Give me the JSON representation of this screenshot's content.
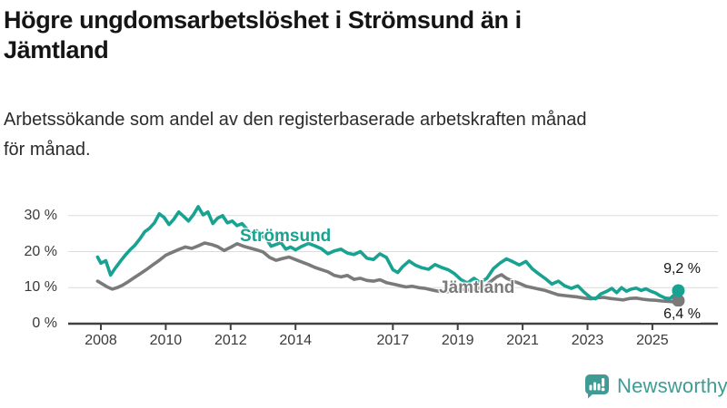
{
  "header": {
    "title_lines": [
      "Högre ungdomsarbetslöshet i Strömsund än i",
      "Jämtland"
    ],
    "subtitle_lines": [
      "Arbetssökande som andel av den registerbaserade arbetskraften månad",
      "för månad."
    ]
  },
  "chart_data": {
    "type": "line",
    "title": "Högre ungdomsarbetslöshet i Strömsund än i Jämtland",
    "subtitle": "Arbetssökande som andel av den registerbaserade arbetskraften månad för månad.",
    "unit": "%",
    "grid": true,
    "legend_position": "inline-labels",
    "x_axis": {
      "range": [
        2007.8,
        2026.1
      ],
      "ticks": [
        {
          "value": 2008,
          "label": "2008"
        },
        {
          "value": 2010,
          "label": "2010"
        },
        {
          "value": 2012,
          "label": "2012"
        },
        {
          "value": 2014,
          "label": "2014"
        },
        {
          "value": 2017,
          "label": "2017"
        },
        {
          "value": 2019,
          "label": "2019"
        },
        {
          "value": 2021,
          "label": "2021"
        },
        {
          "value": 2023,
          "label": "2023"
        },
        {
          "value": 2025,
          "label": "2025"
        }
      ]
    },
    "y_axis": {
      "range": [
        0,
        34
      ],
      "ticks": [
        {
          "value": 0,
          "label": "0 %"
        },
        {
          "value": 10,
          "label": "10 %"
        },
        {
          "value": 20,
          "label": "20 %"
        },
        {
          "value": 30,
          "label": "30 %"
        }
      ]
    },
    "series": [
      {
        "name": "Strömsund",
        "color": "#18a292",
        "end_label": "9,2 %",
        "end_value": 9.2,
        "points": [
          [
            2007.9,
            18.5
          ],
          [
            2008.0,
            16.8
          ],
          [
            2008.15,
            17.5
          ],
          [
            2008.3,
            13.5
          ],
          [
            2008.45,
            15.5
          ],
          [
            2008.6,
            17.3
          ],
          [
            2008.75,
            19.0
          ],
          [
            2008.9,
            20.5
          ],
          [
            2009.05,
            21.8
          ],
          [
            2009.2,
            23.5
          ],
          [
            2009.35,
            25.5
          ],
          [
            2009.5,
            26.5
          ],
          [
            2009.65,
            28.0
          ],
          [
            2009.8,
            30.5
          ],
          [
            2009.95,
            29.5
          ],
          [
            2010.1,
            27.5
          ],
          [
            2010.25,
            29.0
          ],
          [
            2010.4,
            31.0
          ],
          [
            2010.55,
            29.8
          ],
          [
            2010.7,
            28.5
          ],
          [
            2010.85,
            30.2
          ],
          [
            2011.0,
            32.5
          ],
          [
            2011.15,
            30.2
          ],
          [
            2011.3,
            31.0
          ],
          [
            2011.45,
            27.8
          ],
          [
            2011.6,
            29.3
          ],
          [
            2011.75,
            30.0
          ],
          [
            2011.9,
            28.0
          ],
          [
            2012.05,
            28.5
          ],
          [
            2012.2,
            27.2
          ],
          [
            2012.35,
            27.8
          ],
          [
            2012.5,
            26.3
          ],
          [
            2012.65,
            25.2
          ],
          [
            2012.8,
            25.8
          ],
          [
            2012.95,
            24.5
          ],
          [
            2013.1,
            23.5
          ],
          [
            2013.25,
            21.5
          ],
          [
            2013.4,
            22.0
          ],
          [
            2013.55,
            22.5
          ],
          [
            2013.7,
            20.7
          ],
          [
            2013.85,
            21.3
          ],
          [
            2014.0,
            20.5
          ],
          [
            2014.2,
            21.5
          ],
          [
            2014.4,
            22.3
          ],
          [
            2014.6,
            21.6
          ],
          [
            2014.8,
            20.8
          ],
          [
            2015.0,
            19.4
          ],
          [
            2015.2,
            20.2
          ],
          [
            2015.4,
            20.7
          ],
          [
            2015.6,
            19.6
          ],
          [
            2015.8,
            19.2
          ],
          [
            2016.0,
            20.0
          ],
          [
            2016.2,
            18.2
          ],
          [
            2016.4,
            17.8
          ],
          [
            2016.6,
            19.4
          ],
          [
            2016.8,
            18.4
          ],
          [
            2017.0,
            15.0
          ],
          [
            2017.15,
            14.2
          ],
          [
            2017.3,
            15.8
          ],
          [
            2017.5,
            17.4
          ],
          [
            2017.7,
            16.2
          ],
          [
            2017.9,
            15.5
          ],
          [
            2018.1,
            15.1
          ],
          [
            2018.3,
            16.4
          ],
          [
            2018.5,
            15.6
          ],
          [
            2018.7,
            15.0
          ],
          [
            2018.9,
            13.9
          ],
          [
            2019.1,
            12.2
          ],
          [
            2019.3,
            11.3
          ],
          [
            2019.5,
            12.6
          ],
          [
            2019.7,
            11.4
          ],
          [
            2019.9,
            12.6
          ],
          [
            2020.1,
            15.3
          ],
          [
            2020.3,
            16.8
          ],
          [
            2020.5,
            18.0
          ],
          [
            2020.7,
            17.2
          ],
          [
            2020.9,
            16.3
          ],
          [
            2021.1,
            17.3
          ],
          [
            2021.3,
            15.2
          ],
          [
            2021.5,
            13.8
          ],
          [
            2021.7,
            12.5
          ],
          [
            2021.9,
            11.0
          ],
          [
            2022.1,
            11.8
          ],
          [
            2022.3,
            10.5
          ],
          [
            2022.5,
            9.8
          ],
          [
            2022.7,
            10.5
          ],
          [
            2022.9,
            8.7
          ],
          [
            2023.1,
            7.2
          ],
          [
            2023.25,
            6.9
          ],
          [
            2023.4,
            8.2
          ],
          [
            2023.6,
            9.0
          ],
          [
            2023.75,
            9.8
          ],
          [
            2023.9,
            8.6
          ],
          [
            2024.05,
            10.0
          ],
          [
            2024.2,
            9.0
          ],
          [
            2024.35,
            9.6
          ],
          [
            2024.5,
            9.9
          ],
          [
            2024.65,
            9.2
          ],
          [
            2024.8,
            9.7
          ],
          [
            2024.95,
            9.0
          ],
          [
            2025.1,
            8.5
          ],
          [
            2025.25,
            7.7
          ],
          [
            2025.4,
            7.1
          ],
          [
            2025.55,
            7.0
          ],
          [
            2025.7,
            8.2
          ],
          [
            2025.8,
            9.2
          ]
        ]
      },
      {
        "name": "Jämtland",
        "color": "#7a7a7a",
        "end_label": "6,4 %",
        "end_value": 6.4,
        "points": [
          [
            2007.9,
            11.8
          ],
          [
            2008.05,
            11.0
          ],
          [
            2008.2,
            10.2
          ],
          [
            2008.35,
            9.6
          ],
          [
            2008.5,
            10.0
          ],
          [
            2008.65,
            10.6
          ],
          [
            2008.8,
            11.4
          ],
          [
            2009.0,
            12.6
          ],
          [
            2009.2,
            13.8
          ],
          [
            2009.4,
            15.0
          ],
          [
            2009.6,
            16.3
          ],
          [
            2009.8,
            17.6
          ],
          [
            2010.0,
            19.0
          ],
          [
            2010.2,
            19.8
          ],
          [
            2010.4,
            20.6
          ],
          [
            2010.6,
            21.3
          ],
          [
            2010.8,
            20.9
          ],
          [
            2011.0,
            21.6
          ],
          [
            2011.2,
            22.4
          ],
          [
            2011.4,
            22.0
          ],
          [
            2011.6,
            21.4
          ],
          [
            2011.8,
            20.3
          ],
          [
            2012.0,
            21.2
          ],
          [
            2012.2,
            22.2
          ],
          [
            2012.4,
            21.5
          ],
          [
            2012.6,
            21.0
          ],
          [
            2012.8,
            20.5
          ],
          [
            2013.0,
            19.9
          ],
          [
            2013.2,
            18.4
          ],
          [
            2013.4,
            17.6
          ],
          [
            2013.6,
            18.1
          ],
          [
            2013.8,
            18.5
          ],
          [
            2014.0,
            17.8
          ],
          [
            2014.2,
            17.1
          ],
          [
            2014.4,
            16.4
          ],
          [
            2014.6,
            15.6
          ],
          [
            2014.8,
            15.0
          ],
          [
            2015.0,
            14.4
          ],
          [
            2015.2,
            13.4
          ],
          [
            2015.4,
            13.0
          ],
          [
            2015.6,
            13.4
          ],
          [
            2015.8,
            12.3
          ],
          [
            2016.0,
            12.6
          ],
          [
            2016.2,
            12.0
          ],
          [
            2016.4,
            11.8
          ],
          [
            2016.6,
            12.2
          ],
          [
            2016.8,
            11.4
          ],
          [
            2017.0,
            11.0
          ],
          [
            2017.2,
            10.6
          ],
          [
            2017.4,
            10.2
          ],
          [
            2017.6,
            10.4
          ],
          [
            2017.8,
            10.0
          ],
          [
            2018.0,
            9.8
          ],
          [
            2018.2,
            9.4
          ],
          [
            2018.4,
            9.0
          ],
          [
            2018.6,
            8.8
          ],
          [
            2018.8,
            9.0
          ],
          [
            2019.0,
            9.2
          ],
          [
            2019.2,
            9.6
          ],
          [
            2019.4,
            9.3
          ],
          [
            2019.6,
            9.8
          ],
          [
            2019.8,
            10.2
          ],
          [
            2020.0,
            11.6
          ],
          [
            2020.2,
            13.0
          ],
          [
            2020.35,
            13.6
          ],
          [
            2020.5,
            12.6
          ],
          [
            2020.7,
            11.8
          ],
          [
            2020.9,
            11.2
          ],
          [
            2021.1,
            10.4
          ],
          [
            2021.3,
            10.0
          ],
          [
            2021.5,
            9.6
          ],
          [
            2021.7,
            9.2
          ],
          [
            2021.9,
            8.6
          ],
          [
            2022.1,
            8.0
          ],
          [
            2022.3,
            7.8
          ],
          [
            2022.5,
            7.6
          ],
          [
            2022.7,
            7.4
          ],
          [
            2022.9,
            7.1
          ],
          [
            2023.1,
            6.9
          ],
          [
            2023.3,
            7.2
          ],
          [
            2023.5,
            7.3
          ],
          [
            2023.7,
            7.0
          ],
          [
            2023.9,
            6.8
          ],
          [
            2024.1,
            6.6
          ],
          [
            2024.3,
            7.0
          ],
          [
            2024.5,
            7.1
          ],
          [
            2024.7,
            6.8
          ],
          [
            2024.9,
            6.6
          ],
          [
            2025.1,
            6.5
          ],
          [
            2025.3,
            6.3
          ],
          [
            2025.5,
            6.2
          ],
          [
            2025.65,
            6.1
          ],
          [
            2025.8,
            6.4
          ]
        ]
      }
    ]
  },
  "theme": {
    "grid_color": "#dcdcdc",
    "axis_color": "#404040",
    "tick_label_color": "#3a3a3a"
  },
  "footer": {
    "brand": "Newsworthy",
    "brand_color": "#3e9c94",
    "logo_icon": "bar-chart-speech-bubble-icon"
  }
}
